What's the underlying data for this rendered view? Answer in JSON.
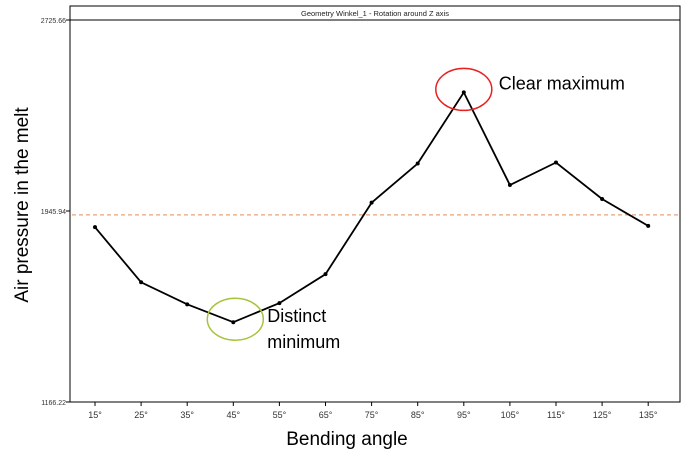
{
  "chart_data": {
    "type": "line",
    "title": "Geometry Winkel_1 - Rotation around Z axis",
    "xlabel": "Bending angle",
    "ylabel": "Air pressure in the melt",
    "categories": [
      "15°",
      "25°",
      "35°",
      "45°",
      "55°",
      "65°",
      "75°",
      "85°",
      "95°",
      "105°",
      "115°",
      "125°",
      "135°"
    ],
    "values": [
      1880,
      1655,
      1565,
      1492,
      1570,
      1688,
      1980,
      2140,
      2430,
      2052,
      2144,
      1995,
      1885
    ],
    "y_ticks": [
      {
        "label": "2725.66",
        "value": 2725.66
      },
      {
        "label": "1945.94",
        "value": 1945.94
      },
      {
        "label": "1166.22",
        "value": 1166.22
      }
    ],
    "ylim": [
      1166.22,
      2725.66
    ],
    "reference_line": {
      "value": 1930,
      "style": "dashed",
      "color": "#e8a07a"
    },
    "line_color": "#000000",
    "grid": false,
    "legend": "none",
    "annotations": [
      {
        "text": "Clear maximum",
        "category": "95°",
        "circle_color": "#e8201e"
      },
      {
        "text": "Distinct\nminimum",
        "category": "45°",
        "circle_color": "#a6c43a"
      }
    ]
  }
}
